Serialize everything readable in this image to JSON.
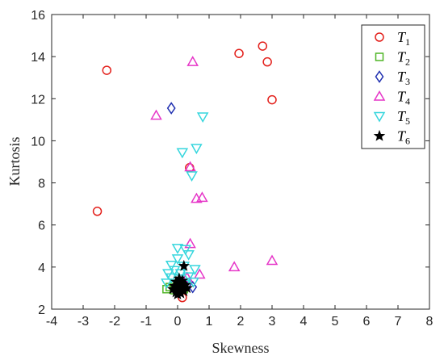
{
  "chart_data": {
    "type": "scatter",
    "xlabel": "Skewness",
    "ylabel": "Kurtosis",
    "xlim": [
      -4,
      8
    ],
    "ylim": [
      2,
      16
    ],
    "xticks": [
      -4,
      -3,
      -2,
      -1,
      0,
      1,
      2,
      3,
      4,
      5,
      6,
      7,
      8
    ],
    "yticks": [
      2,
      4,
      6,
      8,
      10,
      12,
      14,
      16
    ],
    "grid": false,
    "legend_position": "top-right",
    "series": [
      {
        "name": "T1",
        "name_base": "T",
        "name_sub": "1",
        "marker": "circle",
        "color": "#e3201b",
        "points": [
          [
            -2.25,
            13.35
          ],
          [
            1.95,
            14.15
          ],
          [
            2.7,
            14.5
          ],
          [
            2.85,
            13.75
          ],
          [
            3.0,
            11.95
          ],
          [
            -2.55,
            6.65
          ],
          [
            0.38,
            8.72
          ],
          [
            0.15,
            2.55
          ]
        ]
      },
      {
        "name": "T2",
        "name_base": "T",
        "name_sub": "2",
        "marker": "square",
        "color": "#4fb526",
        "points": [
          [
            -0.35,
            2.95
          ],
          [
            -0.25,
            3.05
          ],
          [
            -0.1,
            2.9
          ],
          [
            0.0,
            2.9
          ],
          [
            0.1,
            3.0
          ],
          [
            0.2,
            2.95
          ]
        ]
      },
      {
        "name": "T3",
        "name_base": "T",
        "name_sub": "3",
        "marker": "diamond",
        "color": "#1f2fb0",
        "points": [
          [
            -0.2,
            11.55
          ],
          [
            0.48,
            3.05
          ],
          [
            0.2,
            3.25
          ],
          [
            -0.05,
            3.0
          ],
          [
            0.1,
            2.9
          ]
        ]
      },
      {
        "name": "T4",
        "name_base": "T",
        "name_sub": "4",
        "marker": "triangle-up",
        "color": "#e636c8",
        "points": [
          [
            0.48,
            13.75
          ],
          [
            -0.68,
            11.2
          ],
          [
            0.4,
            8.75
          ],
          [
            0.78,
            7.3
          ],
          [
            0.6,
            7.25
          ],
          [
            0.4,
            5.1
          ],
          [
            1.8,
            4.0
          ],
          [
            3.0,
            4.3
          ],
          [
            0.7,
            3.65
          ],
          [
            0.3,
            3.5
          ],
          [
            0.05,
            3.3
          ]
        ]
      },
      {
        "name": "T5",
        "name_base": "T",
        "name_sub": "5",
        "marker": "triangle-down",
        "color": "#36d6dd",
        "points": [
          [
            0.8,
            11.15
          ],
          [
            0.15,
            9.45
          ],
          [
            0.6,
            9.65
          ],
          [
            0.45,
            8.35
          ],
          [
            0.0,
            4.9
          ],
          [
            0.25,
            4.85
          ],
          [
            0.35,
            4.6
          ],
          [
            0.0,
            4.4
          ],
          [
            -0.2,
            4.1
          ],
          [
            0.2,
            4.05
          ],
          [
            0.55,
            3.9
          ],
          [
            -0.1,
            3.85
          ],
          [
            -0.3,
            3.7
          ],
          [
            0.1,
            3.7
          ],
          [
            0.35,
            3.55
          ],
          [
            -0.2,
            3.5
          ],
          [
            0.05,
            3.45
          ],
          [
            0.5,
            3.3
          ],
          [
            -0.35,
            3.25
          ],
          [
            0.25,
            3.2
          ]
        ]
      },
      {
        "name": "T6",
        "name_base": "T",
        "name_sub": "6",
        "marker": "star",
        "color": "#000000",
        "points": [
          [
            0.2,
            4.05
          ],
          [
            0.05,
            3.45
          ],
          [
            0.15,
            3.35
          ],
          [
            -0.05,
            3.3
          ],
          [
            0.1,
            3.2
          ],
          [
            0.25,
            3.15
          ],
          [
            -0.1,
            3.1
          ],
          [
            0.0,
            3.05
          ],
          [
            0.15,
            3.0
          ],
          [
            0.3,
            3.0
          ],
          [
            -0.15,
            2.95
          ],
          [
            0.05,
            2.9
          ],
          [
            0.2,
            2.85
          ],
          [
            -0.05,
            2.8
          ],
          [
            0.1,
            2.75
          ],
          [
            0.0,
            2.7
          ]
        ]
      }
    ]
  }
}
